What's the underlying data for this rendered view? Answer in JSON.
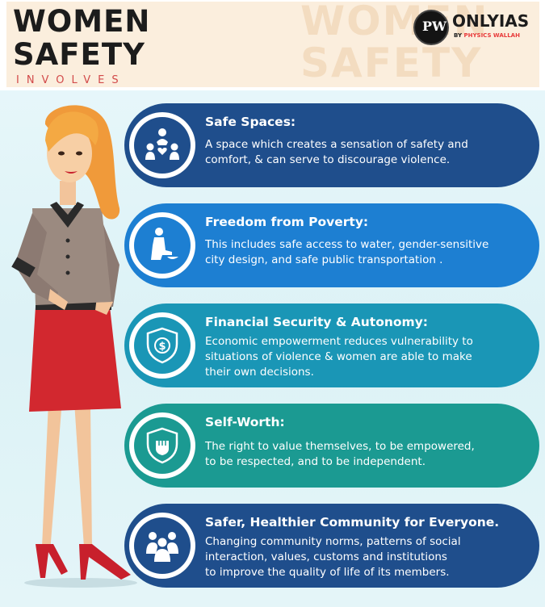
{
  "header": {
    "title_line1": "WOMEN",
    "title_line2": "SAFETY",
    "subtitle": "INVOLVES",
    "watermark_line1": "WOMEN",
    "watermark_line2": "SAFETY"
  },
  "logo": {
    "badge": "PW",
    "name": "ONLYIAS",
    "tag_prefix": "BY ",
    "tag_brand": "PHYSICS WALLAH"
  },
  "colors": {
    "dark_blue": "#1f4e8c",
    "bright_blue": "#1d7fd2",
    "teal_blue": "#1a96b6",
    "teal": "#1b9a92",
    "header_band": "#fbeedd",
    "subtitle_red": "#d24a4a"
  },
  "items": [
    {
      "icon": "community-people-icon",
      "title": "Safe Spaces:",
      "lines": [
        "A space which creates a sensation of safety and",
        "comfort, & can serve to discourage violence."
      ]
    },
    {
      "icon": "person-begging-icon",
      "title": "Freedom from Poverty:",
      "lines": [
        "This includes safe access to water, gender-sensitive",
        "city design, and safe public transportation ."
      ]
    },
    {
      "icon": "dollar-shield-icon",
      "title": "Financial Security & Autonomy:",
      "lines": [
        "Economic empowerment reduces vulnerability to",
        "situations of violence & women are able to make",
        "their own decisions."
      ]
    },
    {
      "icon": "fist-shield-icon",
      "title": "Self-Worth:",
      "lines": [
        "The right to value themselves, to be empowered,",
        "to be respected, and to be independent."
      ]
    },
    {
      "icon": "group-people-icon",
      "title": "Safer, Healthier Community for Everyone.",
      "lines": [
        "Changing community norms, patterns of social",
        "interaction, values, customs and institutions",
        "to improve the quality of life of its members."
      ]
    }
  ]
}
